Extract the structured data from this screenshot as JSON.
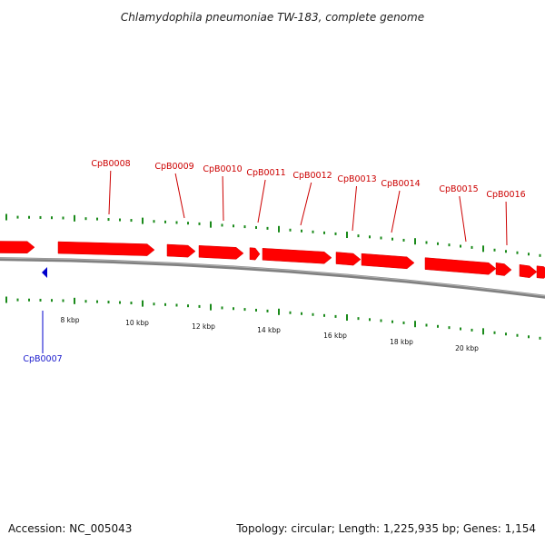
{
  "title": "Chlamydophila pneumoniae TW-183, complete genome",
  "footer": {
    "accession": "Accession: NC_005043",
    "summary": "Topology: circular; Length: 1,225,935 bp; Genes: 1,154"
  },
  "colors": {
    "forward_gene": "#ff0000",
    "forward_label": "#cc0000",
    "reverse_gene": "#0000cc",
    "reverse_label": "#1a1acc",
    "tick": "#1a8a1a",
    "backbone": "#808080"
  },
  "chart_data": {
    "type": "genome_map",
    "scale_labels": [
      "8 kbp",
      "10 kbp",
      "12 kbp",
      "14 kbp",
      "16 kbp",
      "18 kbp",
      "20 kbp"
    ],
    "genes_forward": [
      "CpB0008",
      "CpB0009",
      "CpB0010",
      "CpB0011",
      "CpB0012",
      "CpB0013",
      "CpB0014",
      "CpB0015",
      "CpB0016"
    ],
    "genes_reverse": [
      "CpB0007"
    ]
  }
}
